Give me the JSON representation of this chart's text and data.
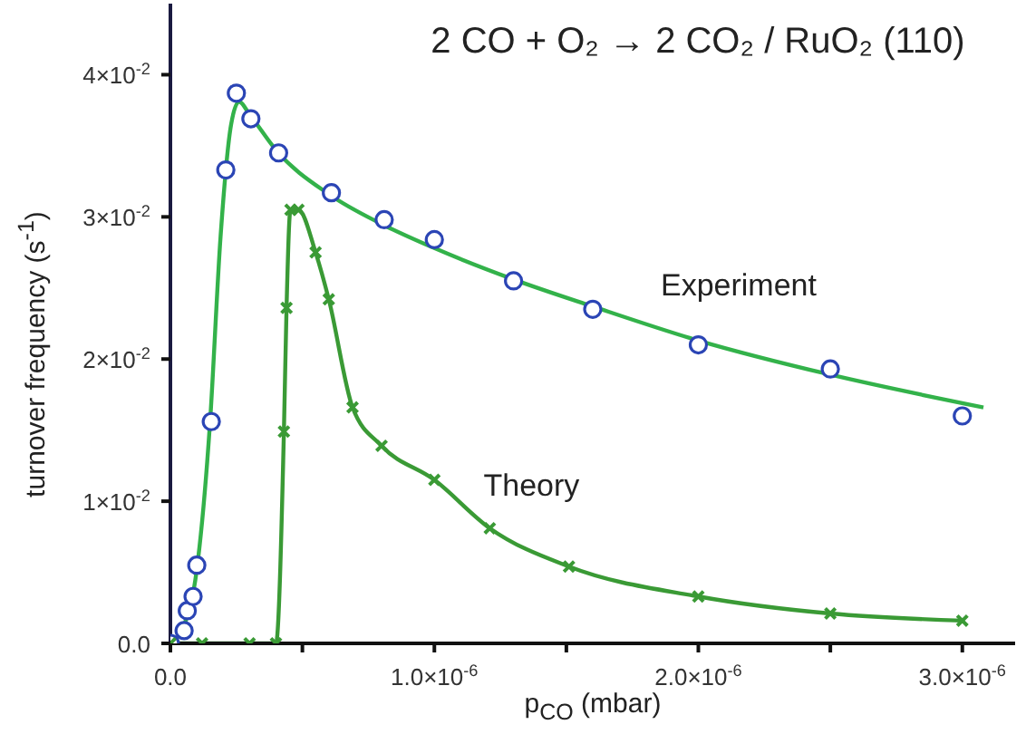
{
  "chart_data": {
    "type": "line",
    "title": "2 CO + O₂ → 2 CO₂ / RuO₂ (110)",
    "xlabel": "p$_{CO}$ (mbar)",
    "ylabel": "turnover frequency (s$^{-1}$)",
    "xlim": [
      0,
      3.2e-06
    ],
    "ylim": [
      0,
      0.045
    ],
    "xticks": [
      {
        "value": 0,
        "label": "0.0"
      },
      {
        "value": 5e-07,
        "label": null
      },
      {
        "value": 1e-06,
        "label": "1.0×10$^{-6}$"
      },
      {
        "value": 1.5e-06,
        "label": null
      },
      {
        "value": 2e-06,
        "label": "2.0×10$^{-6}$"
      },
      {
        "value": 2.5e-06,
        "label": null
      },
      {
        "value": 3e-06,
        "label": "3.0×10$^{-6}$"
      }
    ],
    "yticks": [
      {
        "value": 0,
        "label": "0.0"
      },
      {
        "value": 0.01,
        "label": "1×10$^{-2}$"
      },
      {
        "value": 0.02,
        "label": "2×10$^{-2}$"
      },
      {
        "value": 0.03,
        "label": "3×10$^{-2}$"
      },
      {
        "value": 0.04,
        "label": "4×10$^{-2}$"
      }
    ],
    "series": [
      {
        "type": "line",
        "color": "#33b24a",
        "marker": "none",
        "x": [
          0,
          5e-08,
          1e-07,
          1.5e-07,
          1.9e-07,
          2.3e-07,
          2.6e-07,
          3e-07,
          4e-07,
          6e-07,
          8e-07,
          1e-06,
          1.3e-06,
          1.6e-06,
          2e-06,
          2.5e-06,
          3.08e-06
        ],
        "values": [
          0,
          0.0012,
          0.0052,
          0.0155,
          0.0286,
          0.0365,
          0.0381,
          0.0372,
          0.0347,
          0.0316,
          0.0295,
          0.0278,
          0.0256,
          0.0237,
          0.0213,
          0.0189,
          0.0166
        ]
      },
      {
        "type": "scatter",
        "name": "Experiment",
        "color": "#2b45b5",
        "marker": "circle",
        "x": [
          0,
          5.2e-08,
          6.4e-08,
          8.6e-08,
          1e-07,
          1.55e-07,
          2.1e-07,
          2.5e-07,
          3.05e-07,
          4.1e-07,
          6.1e-07,
          8.1e-07,
          1e-06,
          1.3e-06,
          1.6e-06,
          2e-06,
          2.5e-06,
          3e-06
        ],
        "values": [
          0,
          0.0009,
          0.0023,
          0.0033,
          0.0055,
          0.0156,
          0.0333,
          0.0387,
          0.0369,
          0.0345,
          0.0317,
          0.0298,
          0.0284,
          0.0255,
          0.0235,
          0.021,
          0.0193,
          0.016
        ]
      },
      {
        "type": "line",
        "name": "Theory",
        "color": "#3a9a35",
        "marker": "cross",
        "x": [
          0,
          1.2e-07,
          3e-07,
          4e-07,
          4.3e-07,
          4.4e-07,
          4.55e-07,
          4.85e-07,
          5.5e-07,
          6e-07,
          6.9e-07,
          8e-07,
          1e-06,
          1.21e-06,
          1.51e-06,
          2e-06,
          2.5e-06,
          3e-06
        ],
        "values": [
          0,
          0,
          0,
          0,
          0.0149,
          0.0236,
          0.0305,
          0.0305,
          0.0275,
          0.0242,
          0.0166,
          0.0139,
          0.0115,
          0.0081,
          0.0054,
          0.0033,
          0.0021,
          0.0016
        ]
      }
    ]
  }
}
